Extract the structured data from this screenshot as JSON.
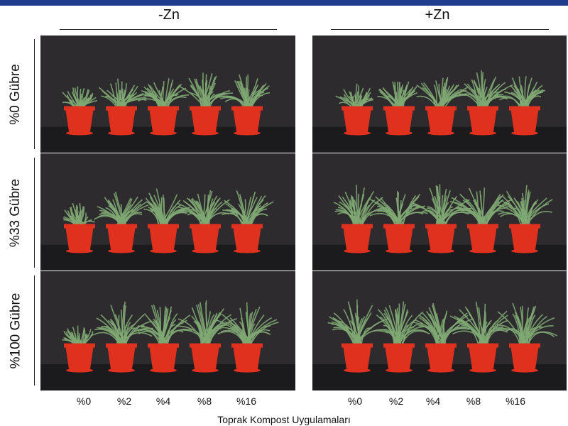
{
  "columns": [
    "-Zn",
    "+Zn"
  ],
  "rows": [
    "%0 Gübre",
    "%33 Gübre",
    "%100 Gübre"
  ],
  "xticks": [
    "%0",
    "%2",
    "%4",
    "%8",
    "%16"
  ],
  "xlabel": "Toprak Kompost Uygulamaları",
  "colors": {
    "bar": "#1f3d8c",
    "background": "#2d2b2e",
    "floor": "#1b1a1c",
    "pot": "#e0301e",
    "leaf": "#7fa873"
  },
  "plant_size": [
    [
      0.55,
      0.7,
      0.78,
      0.82,
      0.8
    ],
    [
      0.6,
      0.72,
      0.8,
      0.85,
      0.82
    ],
    [
      0.55,
      0.85,
      0.88,
      0.9,
      0.88
    ],
    [
      0.92,
      0.92,
      0.95,
      0.95,
      0.93
    ],
    [
      0.5,
      0.95,
      0.98,
      1.0,
      0.95
    ],
    [
      1.0,
      1.0,
      1.0,
      1.0,
      1.0
    ]
  ]
}
